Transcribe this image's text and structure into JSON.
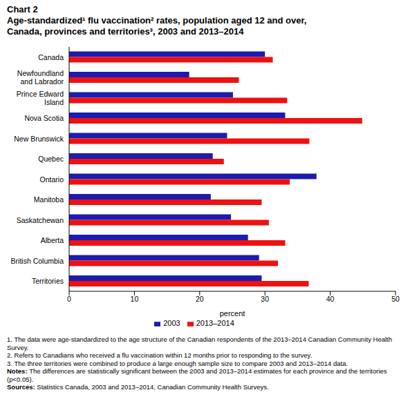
{
  "chart_data": {
    "type": "bar",
    "orientation": "horizontal",
    "title": "Chart 2",
    "subtitle": "Age-standardized¹ flu vaccination² rates, population aged 12 and over, Canada, provinces and territories³, 2003 and 2013–2014",
    "x_label": "percent",
    "categories": [
      "Canada",
      "Newfoundland and Labrador",
      "Prince Edward Island",
      "Nova Scotia",
      "New Brunswick",
      "Quebec",
      "Ontario",
      "Manitoba",
      "Saskatchewan",
      "Alberta",
      "British Columbia",
      "Territories"
    ],
    "series": [
      {
        "name": "2003",
        "color": "#1c1cb0",
        "values": [
          30.0,
          18.4,
          25.1,
          33.1,
          24.2,
          22.0,
          37.9,
          21.7,
          24.8,
          27.4,
          29.1,
          29.5
        ]
      },
      {
        "name": "2013–2014",
        "color": "#ee1111",
        "values": [
          31.2,
          26.0,
          33.4,
          44.9,
          36.8,
          23.7,
          33.8,
          29.5,
          30.6,
          33.1,
          32.0,
          36.7
        ]
      }
    ],
    "xlim": [
      0,
      50
    ],
    "xticks": [
      0,
      10,
      20,
      30,
      40,
      50
    ],
    "grid": false,
    "legend": "bottom",
    "footnotes": [
      {
        "label": "",
        "text": "1. The data were age-standardized to the age structure of the Canadian respondents of the 2013–2014 Canadian Community Health Survey."
      },
      {
        "label": "",
        "text": "2. Refers to Canadians who received a flu vaccination within 12 months prior to responding to the survey."
      },
      {
        "label": "",
        "text": "3. The three territories were combined to produce a large enough sample size to compare 2003 and 2013–2014 data."
      },
      {
        "label": "Notes:",
        "text": "The differences are statistically significant between the 2003 and 2013–2014 estimates for each province and the territories (p<0.05)."
      },
      {
        "label": "Sources:",
        "text": "Statistics Canada, 2003 and 2013–2014, Canadian Community Health Surveys."
      }
    ]
  }
}
